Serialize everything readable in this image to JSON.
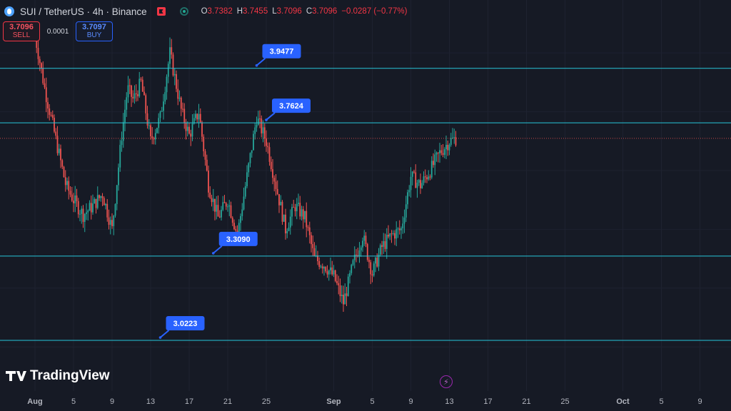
{
  "header": {
    "symbol": "SUI / TetherUS · 4h · Binance",
    "ohlc": {
      "o_label": "O",
      "o_value": "3.7382",
      "h_label": "H",
      "h_value": "3.7455",
      "l_label": "L",
      "l_value": "3.7096",
      "c_label": "C",
      "c_value": "3.7096",
      "change": "−0.0287 (−0.77%)"
    }
  },
  "trade": {
    "sell_price": "3.7096",
    "sell_label": "SELL",
    "spread": "0.0001",
    "buy_price": "3.7097",
    "buy_label": "BUY"
  },
  "watermark": "TradingView",
  "colors": {
    "background": "#161a25",
    "up": "#26a69a",
    "down": "#ef5350",
    "level_line": "#26c6da",
    "label_bg": "#2962ff",
    "current_price_line": "#ef5350"
  },
  "chart_data": {
    "type": "candlestick",
    "symbol": "SUI / TetherUS",
    "interval": "4h",
    "exchange": "Binance",
    "x_axis_ticks": [
      "Aug",
      "5",
      "9",
      "13",
      "17",
      "21",
      "25",
      "Sep",
      "5",
      "9",
      "13",
      "17",
      "21",
      "25",
      "Oct",
      "5",
      "9",
      "13"
    ],
    "y_range": [
      2.85,
      4.18
    ],
    "current_price": 3.7096,
    "price_levels": [
      {
        "label": "3.9477",
        "value": 3.9477,
        "label_day": 23.0
      },
      {
        "label": "3.7624",
        "value": 3.7624,
        "label_day": 24.0
      },
      {
        "label": "3.3090",
        "value": 3.309,
        "label_day": 18.5
      },
      {
        "label": "3.0223",
        "value": 3.0223,
        "label_day": 13.0
      }
    ],
    "series_path": [
      [
        0,
        4.06
      ],
      [
        1.0,
        3.88
      ],
      [
        2.2,
        3.7
      ],
      [
        3.2,
        3.55
      ],
      [
        4.0,
        3.5
      ],
      [
        5.0,
        3.45
      ],
      [
        6.0,
        3.48
      ],
      [
        7.0,
        3.52
      ],
      [
        8.0,
        3.4
      ],
      [
        9.0,
        3.72
      ],
      [
        9.6,
        3.88
      ],
      [
        10.2,
        3.84
      ],
      [
        11.0,
        3.9
      ],
      [
        12.0,
        3.7
      ],
      [
        13.0,
        3.78
      ],
      [
        14.0,
        4.0
      ],
      [
        14.6,
        3.9
      ],
      [
        15.2,
        3.8
      ],
      [
        16.0,
        3.72
      ],
      [
        17.0,
        3.8
      ],
      [
        18.0,
        3.55
      ],
      [
        19.0,
        3.44
      ],
      [
        20.0,
        3.5
      ],
      [
        21.0,
        3.38
      ],
      [
        22.2,
        3.62
      ],
      [
        23.0,
        3.78
      ],
      [
        24.0,
        3.7
      ],
      [
        25.0,
        3.55
      ],
      [
        26.0,
        3.4
      ],
      [
        27.0,
        3.48
      ],
      [
        28.0,
        3.44
      ],
      [
        29.0,
        3.3
      ],
      [
        30.0,
        3.28
      ],
      [
        31.0,
        3.24
      ],
      [
        32.0,
        3.15
      ],
      [
        33.0,
        3.28
      ],
      [
        34.0,
        3.38
      ],
      [
        35.0,
        3.25
      ],
      [
        36.0,
        3.34
      ],
      [
        37.0,
        3.38
      ],
      [
        38.0,
        3.4
      ],
      [
        39.0,
        3.58
      ],
      [
        40.0,
        3.55
      ],
      [
        41.0,
        3.6
      ],
      [
        42.0,
        3.66
      ],
      [
        43.0,
        3.7
      ],
      [
        43.7,
        3.7096
      ]
    ]
  }
}
